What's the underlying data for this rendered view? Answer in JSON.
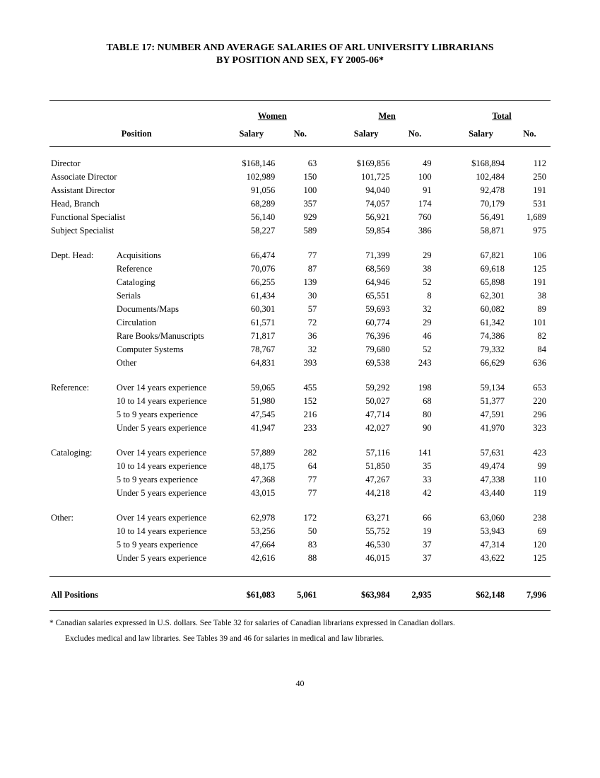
{
  "title": "TABLE 17:  NUMBER AND AVERAGE SALARIES OF ARL UNIVERSITY LIBRARIANS",
  "subtitle": "BY POSITION AND SEX, FY 2005-06*",
  "headers": {
    "position": "Position",
    "women": "Women",
    "men": "Men",
    "total": "Total",
    "salary": "Salary",
    "no": "No."
  },
  "rows_top": [
    {
      "label": "Director",
      "w_sal": "$168,146",
      "w_no": "63",
      "m_sal": "$169,856",
      "m_no": "49",
      "t_sal": "$168,894",
      "t_no": "112"
    },
    {
      "label": "Associate Director",
      "w_sal": "102,989",
      "w_no": "150",
      "m_sal": "101,725",
      "m_no": "100",
      "t_sal": "102,484",
      "t_no": "250"
    },
    {
      "label": "Assistant Director",
      "w_sal": "91,056",
      "w_no": "100",
      "m_sal": "94,040",
      "m_no": "91",
      "t_sal": "92,478",
      "t_no": "191"
    },
    {
      "label": "Head, Branch",
      "w_sal": "68,289",
      "w_no": "357",
      "m_sal": "74,057",
      "m_no": "174",
      "t_sal": "70,179",
      "t_no": "531"
    },
    {
      "label": "Functional Specialist",
      "w_sal": "56,140",
      "w_no": "929",
      "m_sal": "56,921",
      "m_no": "760",
      "t_sal": "56,491",
      "t_no": "1,689"
    },
    {
      "label": "Subject Specialist",
      "w_sal": "58,227",
      "w_no": "589",
      "m_sal": "59,854",
      "m_no": "386",
      "t_sal": "58,871",
      "t_no": "975"
    }
  ],
  "groups": [
    {
      "label": "Dept. Head:",
      "rows": [
        {
          "label": "Acquisitions",
          "w_sal": "66,474",
          "w_no": "77",
          "m_sal": "71,399",
          "m_no": "29",
          "t_sal": "67,821",
          "t_no": "106"
        },
        {
          "label": "Reference",
          "w_sal": "70,076",
          "w_no": "87",
          "m_sal": "68,569",
          "m_no": "38",
          "t_sal": "69,618",
          "t_no": "125"
        },
        {
          "label": "Cataloging",
          "w_sal": "66,255",
          "w_no": "139",
          "m_sal": "64,946",
          "m_no": "52",
          "t_sal": "65,898",
          "t_no": "191"
        },
        {
          "label": "Serials",
          "w_sal": "61,434",
          "w_no": "30",
          "m_sal": "65,551",
          "m_no": "8",
          "t_sal": "62,301",
          "t_no": "38"
        },
        {
          "label": "Documents/Maps",
          "w_sal": "60,301",
          "w_no": "57",
          "m_sal": "59,693",
          "m_no": "32",
          "t_sal": "60,082",
          "t_no": "89"
        },
        {
          "label": "Circulation",
          "w_sal": "61,571",
          "w_no": "72",
          "m_sal": "60,774",
          "m_no": "29",
          "t_sal": "61,342",
          "t_no": "101"
        },
        {
          "label": "Rare Books/Manuscripts",
          "w_sal": "71,817",
          "w_no": "36",
          "m_sal": "76,396",
          "m_no": "46",
          "t_sal": "74,386",
          "t_no": "82"
        },
        {
          "label": "Computer Systems",
          "w_sal": "78,767",
          "w_no": "32",
          "m_sal": "79,680",
          "m_no": "52",
          "t_sal": "79,332",
          "t_no": "84"
        },
        {
          "label": "Other",
          "w_sal": "64,831",
          "w_no": "393",
          "m_sal": "69,538",
          "m_no": "243",
          "t_sal": "66,629",
          "t_no": "636"
        }
      ]
    },
    {
      "label": "Reference:",
      "rows": [
        {
          "label": "Over 14  years experience",
          "w_sal": "59,065",
          "w_no": "455",
          "m_sal": "59,292",
          "m_no": "198",
          "t_sal": "59,134",
          "t_no": "653"
        },
        {
          "label": "10 to 14 years experience",
          "w_sal": "51,980",
          "w_no": "152",
          "m_sal": "50,027",
          "m_no": "68",
          "t_sal": "51,377",
          "t_no": "220"
        },
        {
          "label": "5 to 9 years experience",
          "w_sal": "47,545",
          "w_no": "216",
          "m_sal": "47,714",
          "m_no": "80",
          "t_sal": "47,591",
          "t_no": "296"
        },
        {
          "label": "Under 5 years experience",
          "w_sal": "41,947",
          "w_no": "233",
          "m_sal": "42,027",
          "m_no": "90",
          "t_sal": "41,970",
          "t_no": "323"
        }
      ]
    },
    {
      "label": "Cataloging:",
      "rows": [
        {
          "label": "Over 14  years experience",
          "w_sal": "57,889",
          "w_no": "282",
          "m_sal": "57,116",
          "m_no": "141",
          "t_sal": "57,631",
          "t_no": "423"
        },
        {
          "label": "10 to 14 years experience",
          "w_sal": "48,175",
          "w_no": "64",
          "m_sal": "51,850",
          "m_no": "35",
          "t_sal": "49,474",
          "t_no": "99"
        },
        {
          "label": "5 to 9 years experience",
          "w_sal": "47,368",
          "w_no": "77",
          "m_sal": "47,267",
          "m_no": "33",
          "t_sal": "47,338",
          "t_no": "110"
        },
        {
          "label": "Under 5 years experience",
          "w_sal": "43,015",
          "w_no": "77",
          "m_sal": "44,218",
          "m_no": "42",
          "t_sal": "43,440",
          "t_no": "119"
        }
      ]
    },
    {
      "label": "Other:",
      "rows": [
        {
          "label": "Over 14  years experience",
          "w_sal": "62,978",
          "w_no": "172",
          "m_sal": "63,271",
          "m_no": "66",
          "t_sal": "63,060",
          "t_no": "238"
        },
        {
          "label": "10 to 14 years experience",
          "w_sal": "53,256",
          "w_no": "50",
          "m_sal": "55,752",
          "m_no": "19",
          "t_sal": "53,943",
          "t_no": "69"
        },
        {
          "label": "5 to 9 years experience",
          "w_sal": "47,664",
          "w_no": "83",
          "m_sal": "46,530",
          "m_no": "37",
          "t_sal": "47,314",
          "t_no": "120"
        },
        {
          "label": "Under 5 years experience",
          "w_sal": "42,616",
          "w_no": "88",
          "m_sal": "46,015",
          "m_no": "37",
          "t_sal": "43,622",
          "t_no": "125"
        }
      ]
    }
  ],
  "totals": {
    "label": "All Positions",
    "w_sal": "$61,083",
    "w_no": "5,061",
    "m_sal": "$63,984",
    "m_no": "2,935",
    "t_sal": "$62,148",
    "t_no": "7,996"
  },
  "footnote1": "* Canadian salaries expressed in U.S. dollars. See Table 32 for salaries of Canadian librarians expressed in Canadian dollars.",
  "footnote2": "Excludes medical and law libraries. See Tables 39 and 46 for salaries in medical and law libraries.",
  "page_number": "40"
}
